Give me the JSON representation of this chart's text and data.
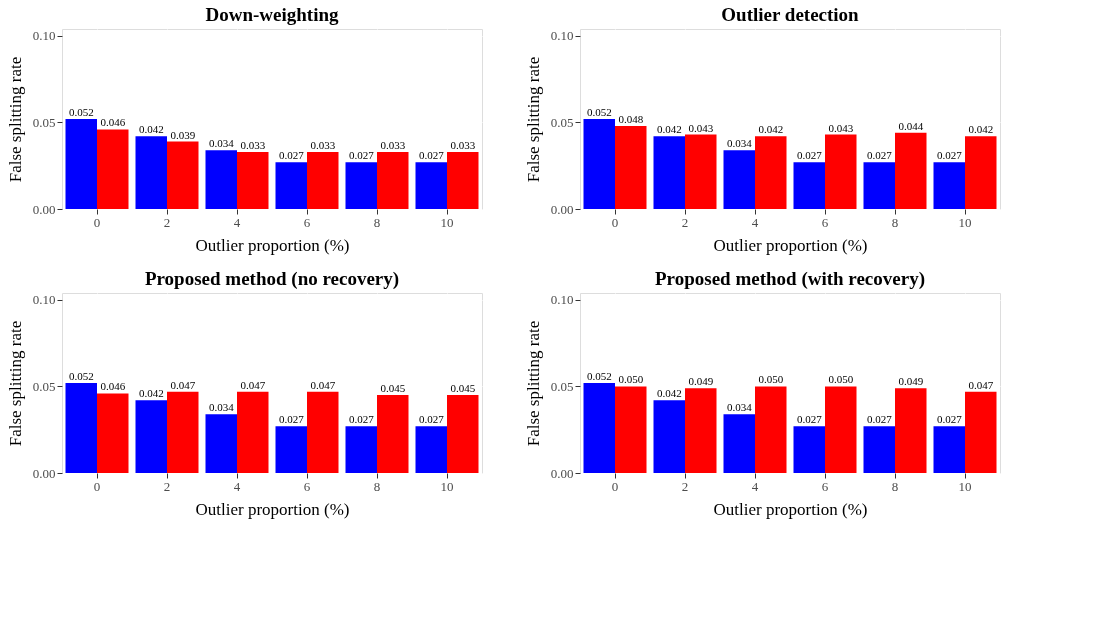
{
  "chart_data": [
    {
      "type": "bar",
      "title": "Down-weighting",
      "xlabel": "Outlier proportion (%)",
      "ylabel": "False splitting rate",
      "categories": [
        "0",
        "2",
        "4",
        "6",
        "8",
        "10"
      ],
      "ylim": [
        0,
        0.104
      ],
      "yticks": [
        {
          "value": 0,
          "label": "0.00"
        },
        {
          "value": 0.05,
          "label": "0.05"
        },
        {
          "value": 0.1,
          "label": "0.10"
        }
      ],
      "grid": true,
      "legend": false,
      "series": [
        {
          "color": "#0000ff",
          "values": [
            0.052,
            0.042,
            0.034,
            0.027,
            0.027,
            0.027
          ],
          "value_labels": [
            "0.052",
            "0.042",
            "0.034",
            "0.027",
            "0.027",
            "0.027"
          ]
        },
        {
          "color": "#ff0000",
          "values": [
            0.046,
            0.039,
            0.033,
            0.033,
            0.033,
            0.033
          ],
          "value_labels": [
            "0.046",
            "0.039",
            "0.033",
            "0.033",
            "0.033",
            "0.033"
          ]
        }
      ]
    },
    {
      "type": "bar",
      "title": "Outlier detection",
      "xlabel": "Outlier proportion (%)",
      "ylabel": "False splitting rate",
      "categories": [
        "0",
        "2",
        "4",
        "6",
        "8",
        "10"
      ],
      "ylim": [
        0,
        0.104
      ],
      "yticks": [
        {
          "value": 0,
          "label": "0.00"
        },
        {
          "value": 0.05,
          "label": "0.05"
        },
        {
          "value": 0.1,
          "label": "0.10"
        }
      ],
      "grid": true,
      "legend": false,
      "series": [
        {
          "color": "#0000ff",
          "values": [
            0.052,
            0.042,
            0.034,
            0.027,
            0.027,
            0.027
          ],
          "value_labels": [
            "0.052",
            "0.042",
            "0.034",
            "0.027",
            "0.027",
            "0.027"
          ]
        },
        {
          "color": "#ff0000",
          "values": [
            0.048,
            0.043,
            0.042,
            0.043,
            0.044,
            0.042
          ],
          "value_labels": [
            "0.048",
            "0.043",
            "0.042",
            "0.043",
            "0.044",
            "0.042"
          ]
        }
      ]
    },
    {
      "type": "bar",
      "title": "Proposed method (no recovery)",
      "xlabel": "Outlier proportion (%)",
      "ylabel": "False splitting rate",
      "categories": [
        "0",
        "2",
        "4",
        "6",
        "8",
        "10"
      ],
      "ylim": [
        0,
        0.104
      ],
      "yticks": [
        {
          "value": 0,
          "label": "0.00"
        },
        {
          "value": 0.05,
          "label": "0.05"
        },
        {
          "value": 0.1,
          "label": "0.10"
        }
      ],
      "grid": true,
      "legend": false,
      "series": [
        {
          "color": "#0000ff",
          "values": [
            0.052,
            0.042,
            0.034,
            0.027,
            0.027,
            0.027
          ],
          "value_labels": [
            "0.052",
            "0.042",
            "0.034",
            "0.027",
            "0.027",
            "0.027"
          ]
        },
        {
          "color": "#ff0000",
          "values": [
            0.046,
            0.047,
            0.047,
            0.047,
            0.045,
            0.045
          ],
          "value_labels": [
            "0.046",
            "0.047",
            "0.047",
            "0.047",
            "0.045",
            "0.045"
          ]
        }
      ]
    },
    {
      "type": "bar",
      "title": "Proposed method (with recovery)",
      "xlabel": "Outlier proportion (%)",
      "ylabel": "False splitting rate",
      "categories": [
        "0",
        "2",
        "4",
        "6",
        "8",
        "10"
      ],
      "ylim": [
        0,
        0.104
      ],
      "yticks": [
        {
          "value": 0,
          "label": "0.00"
        },
        {
          "value": 0.05,
          "label": "0.05"
        },
        {
          "value": 0.1,
          "label": "0.10"
        }
      ],
      "grid": true,
      "legend": false,
      "series": [
        {
          "color": "#0000ff",
          "values": [
            0.052,
            0.042,
            0.034,
            0.027,
            0.027,
            0.027
          ],
          "value_labels": [
            "0.052",
            "0.042",
            "0.034",
            "0.027",
            "0.027",
            "0.027"
          ]
        },
        {
          "color": "#ff0000",
          "values": [
            0.05,
            0.049,
            0.05,
            0.05,
            0.049,
            0.047
          ],
          "value_labels": [
            "0.050",
            "0.049",
            "0.050",
            "0.050",
            "0.049",
            "0.047"
          ]
        }
      ]
    }
  ]
}
